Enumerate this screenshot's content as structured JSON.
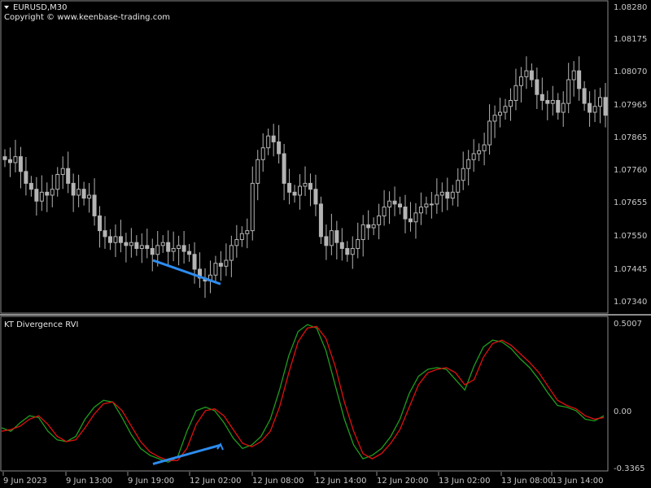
{
  "header": {
    "symbol": "EURUSD,M30",
    "copyright": "Copyright © www.keenbase-trading.com"
  },
  "indicator": {
    "title": "KT Divergence RVI"
  },
  "colors": {
    "background": "#000000",
    "grid": "#8c8c8c",
    "candle": "#b4b4b4",
    "rvi_main": "#1f9d1f",
    "rvi_signal": "#e01010",
    "divergence": "#2d8cf0",
    "text": "#c8c8c8"
  },
  "price_axis": {
    "labels": [
      "1.08280",
      "1.08175",
      "1.08070",
      "1.07965",
      "1.07865",
      "1.07760",
      "1.07655",
      "1.07550",
      "1.07445",
      "1.07340"
    ]
  },
  "indicator_axis": {
    "labels": [
      "0.5007",
      "0.00",
      "-0.3365"
    ]
  },
  "time_axis": {
    "labels": [
      "9 Jun 2023",
      "9 Jun 13:00",
      "9 Jun 19:00",
      "12 Jun 02:00",
      "12 Jun 08:00",
      "12 Jun 14:00",
      "12 Jun 20:00",
      "13 Jun 02:00",
      "13 Jun 08:00",
      "13 Jun 14:00"
    ]
  },
  "chart_data": [
    {
      "type": "candlestick",
      "symbol": "EURUSD",
      "timeframe": "M30",
      "ylim": [
        1.073,
        1.083
      ],
      "close": [
        1.0778,
        1.0777,
        1.0779,
        1.0774,
        1.077,
        1.0768,
        1.0764,
        1.0767,
        1.0766,
        1.0768,
        1.0773,
        1.0775,
        1.077,
        1.0766,
        1.0768,
        1.0765,
        1.0766,
        1.0759,
        1.0754,
        1.0752,
        1.075,
        1.0752,
        1.075,
        1.0749,
        1.075,
        1.0748,
        1.0749,
        1.0748,
        1.0746,
        1.0749,
        1.075,
        1.0747,
        1.0748,
        1.0749,
        1.0747,
        1.0746,
        1.0741,
        1.0738,
        1.0737,
        1.0739,
        1.0743,
        1.0742,
        1.0744,
        1.0749,
        1.0751,
        1.0753,
        1.0754,
        1.077,
        1.0778,
        1.0782,
        1.0786,
        1.0784,
        1.078,
        1.077,
        1.0767,
        1.0766,
        1.0769,
        1.077,
        1.0768,
        1.0763,
        1.0752,
        1.0749,
        1.0754,
        1.075,
        1.0748,
        1.0746,
        1.0748,
        1.0751,
        1.0756,
        1.0755,
        1.0756,
        1.0759,
        1.0762,
        1.0764,
        1.0763,
        1.0762,
        1.0758,
        1.0757,
        1.076,
        1.0762,
        1.0763,
        1.0763,
        1.0766,
        1.0767,
        1.0765,
        1.0767,
        1.0771,
        1.0775,
        1.0778,
        1.078,
        1.0781,
        1.0783,
        1.0791,
        1.0793,
        1.0794,
        1.0796,
        1.0798,
        1.0803,
        1.0806,
        1.0808,
        1.0805,
        1.08,
        1.0798,
        1.0797,
        1.0798,
        1.0794,
        1.0797,
        1.0805,
        1.0808,
        1.0802,
        1.0797,
        1.0794,
        1.0796,
        1.0799,
        1.0793
      ],
      "series": [
        {
          "name": "EURUSD",
          "role": "price"
        }
      ],
      "annotations": [
        {
          "kind": "divergence-line",
          "from_time": "9 Jun 19:00",
          "to_time": "12 Jun 02:00",
          "from_value": 1.0744,
          "to_value": 1.0736
        }
      ]
    },
    {
      "type": "line",
      "title": "KT Divergence RVI",
      "ylim": [
        -0.3365,
        0.5007
      ],
      "series": [
        {
          "name": "",
          "role": "main",
          "color": "#1f9d1f",
          "values": [
            -0.1,
            -0.12,
            -0.07,
            -0.03,
            -0.04,
            -0.12,
            -0.17,
            -0.18,
            -0.15,
            -0.05,
            0.02,
            0.06,
            0.05,
            -0.04,
            -0.14,
            -0.22,
            -0.26,
            -0.28,
            -0.3,
            -0.27,
            -0.12,
            0.0,
            0.02,
            0.0,
            -0.07,
            -0.16,
            -0.22,
            -0.2,
            -0.15,
            -0.05,
            0.12,
            0.32,
            0.46,
            0.5,
            0.48,
            0.35,
            0.15,
            -0.05,
            -0.2,
            -0.28,
            -0.26,
            -0.22,
            -0.15,
            -0.05,
            0.1,
            0.2,
            0.24,
            0.25,
            0.24,
            0.18,
            0.12,
            0.26,
            0.37,
            0.41,
            0.4,
            0.36,
            0.3,
            0.25,
            0.18,
            0.1,
            0.03,
            0.02,
            0.0,
            -0.05,
            -0.06,
            -0.03
          ]
        },
        {
          "name": "",
          "role": "signal",
          "color": "#e01010",
          "values": [
            -0.12,
            -0.11,
            -0.09,
            -0.05,
            -0.03,
            -0.08,
            -0.15,
            -0.18,
            -0.17,
            -0.1,
            -0.02,
            0.04,
            0.05,
            0.0,
            -0.09,
            -0.18,
            -0.24,
            -0.27,
            -0.29,
            -0.29,
            -0.22,
            -0.08,
            0.0,
            0.01,
            -0.03,
            -0.11,
            -0.19,
            -0.21,
            -0.18,
            -0.12,
            0.02,
            0.22,
            0.4,
            0.48,
            0.49,
            0.42,
            0.26,
            0.05,
            -0.12,
            -0.25,
            -0.28,
            -0.25,
            -0.19,
            -0.11,
            0.02,
            0.15,
            0.22,
            0.24,
            0.25,
            0.22,
            0.15,
            0.18,
            0.31,
            0.39,
            0.41,
            0.38,
            0.33,
            0.28,
            0.22,
            0.14,
            0.06,
            0.03,
            0.01,
            -0.03,
            -0.05,
            -0.04
          ]
        }
      ],
      "annotations": [
        {
          "kind": "divergence-line",
          "from_time": "9 Jun 19:00",
          "to_time": "12 Jun 02:00",
          "from_value": -0.31,
          "to_value": -0.2
        }
      ]
    }
  ]
}
